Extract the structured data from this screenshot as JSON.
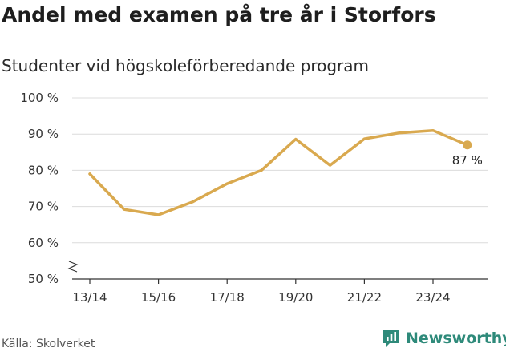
{
  "title": "Andel med examen på tre år i Storfors",
  "subtitle": "Studenter vid högskoleförberedande program",
  "source": "Källa: Skolverket",
  "brand": {
    "name": "Newsworthy",
    "color": "#2e8a7a"
  },
  "chart_data": {
    "type": "line",
    "title": "Andel med examen på tre år i Storfors",
    "subtitle": "Studenter vid högskoleförberedande program",
    "xlabel": "",
    "ylabel": "",
    "ylim": [
      50,
      100
    ],
    "y_ticks": [
      50,
      60,
      70,
      80,
      90,
      100
    ],
    "y_tick_labels": [
      "50 %",
      "60 %",
      "70 %",
      "80 %",
      "90 %",
      "100 %"
    ],
    "x_tick_labels": [
      "13/14",
      "15/16",
      "17/18",
      "19/20",
      "21/22",
      "23/24"
    ],
    "grid": true,
    "axis_break": true,
    "series": [
      {
        "name": "Andel med examen",
        "color": "#d9a94f",
        "x": [
          "13/14",
          "14/15",
          "15/16",
          "16/17",
          "17/18",
          "18/19",
          "19/20",
          "20/21",
          "21/22",
          "22/23",
          "23/24",
          "24/25"
        ],
        "values": [
          79,
          69.2,
          67.7,
          71.3,
          76.3,
          80,
          88.6,
          81.4,
          88.7,
          90.3,
          91,
          87
        ]
      }
    ],
    "annotation": {
      "label": "87 %"
    }
  }
}
